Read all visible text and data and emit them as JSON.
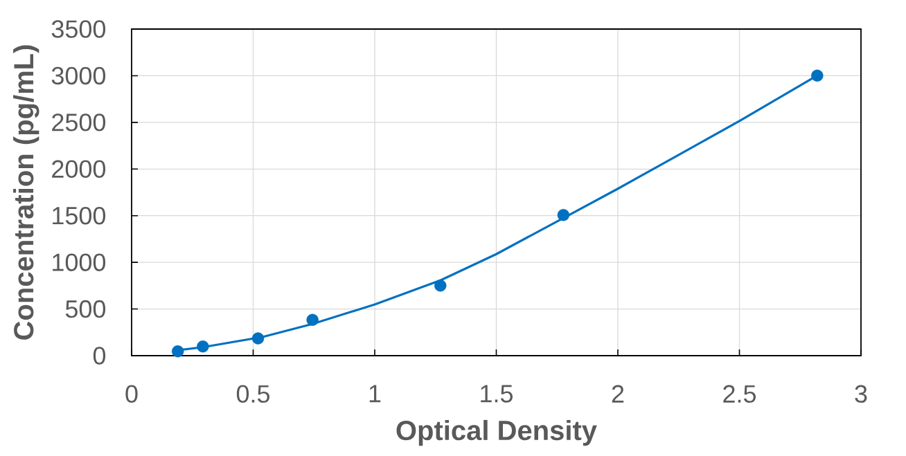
{
  "chart_data": {
    "type": "scatter",
    "xlabel": "Optical Density",
    "ylabel": "Concentration (pg/mL)",
    "xlim": [
      0,
      3
    ],
    "ylim": [
      0,
      3500
    ],
    "xticks": [
      0,
      0.5,
      1,
      1.5,
      2,
      2.5,
      3
    ],
    "yticks": [
      0,
      500,
      1000,
      1500,
      2000,
      2500,
      3000,
      3500
    ],
    "grid": true,
    "series": [
      {
        "color": "#0070c0",
        "marker": "circle",
        "x": [
          0.19,
          0.293,
          0.52,
          0.744,
          1.27,
          1.776,
          2.82
        ],
        "values": [
          47,
          99,
          185,
          383,
          751,
          1508,
          3001
        ]
      },
      {
        "type": "line",
        "color": "#0070c0",
        "marker": "none",
        "line_style": "solid",
        "x": [
          0.19,
          0.293,
          0.541,
          0.743,
          1.0,
          1.271,
          1.5,
          1.776,
          2.0,
          2.25,
          2.5,
          2.82
        ],
        "values": [
          59,
          91,
          202,
          339,
          549,
          808,
          1088,
          1475,
          1789,
          2152,
          2514,
          3003
        ]
      }
    ]
  }
}
